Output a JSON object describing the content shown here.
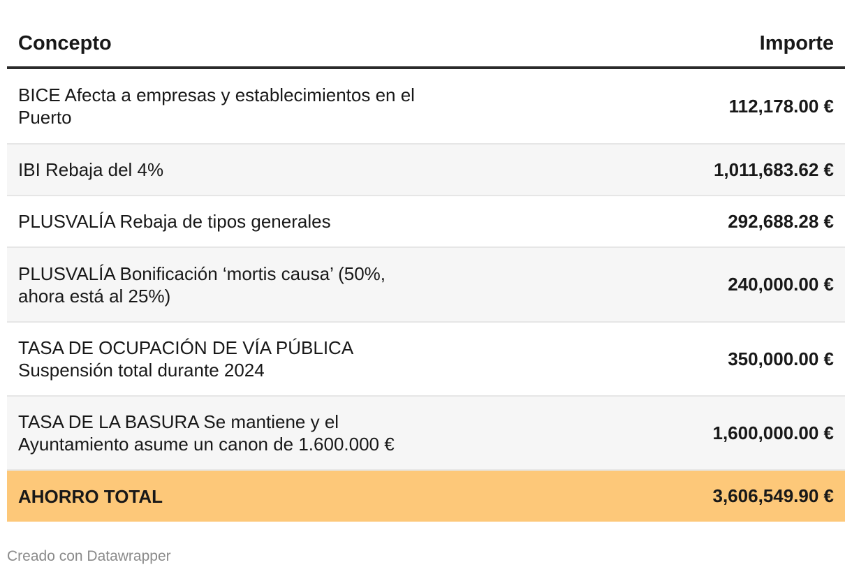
{
  "chart_data": {
    "type": "table",
    "columns": [
      "Concepto",
      "Importe"
    ],
    "rows": [
      {
        "concept": "BICE Afecta a empresas y establecimientos en el Puerto",
        "amount": "112,178.00 €",
        "value": 112178.0
      },
      {
        "concept": "IBI Rebaja del 4%",
        "amount": "1,011,683.62 €",
        "value": 1011683.62
      },
      {
        "concept": "PLUSVALÍA Rebaja de tipos generales",
        "amount": "292,688.28 €",
        "value": 292688.28
      },
      {
        "concept": "PLUSVALÍA Bonificación ‘mortis causa’ (50%, ahora está al 25%)",
        "amount": "240,000.00 €",
        "value": 240000.0
      },
      {
        "concept": "TASA DE OCUPACIÓN DE VÍA PÚBLICA Suspensión total durante 2024",
        "amount": "350,000.00 €",
        "value": 350000.0
      },
      {
        "concept": "TASA DE LA BASURA Se mantiene y el Ayuntamiento asume un canon de 1.600.000 €",
        "amount": "1,600,000.00 €",
        "value": 1600000.0
      }
    ],
    "total": {
      "concept": "AHORRO TOTAL",
      "amount": "3,606,549.90 €",
      "value": 3606549.9
    },
    "highlight_color": "#fdc879"
  },
  "footer": "Creado con Datawrapper"
}
